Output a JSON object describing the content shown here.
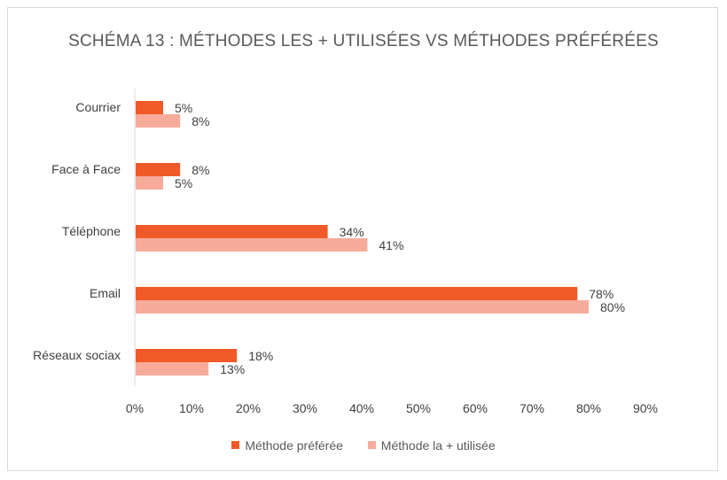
{
  "chart_data": {
    "type": "bar",
    "orientation": "horizontal",
    "title": "SCHÉMA 13 : MÉTHODES LES + UTILISÉES VS MÉTHODES PRÉFÉRÉES",
    "categories": [
      "Courrier",
      "Face à Face",
      "Téléphone",
      "Email",
      "Réseaux sociax"
    ],
    "series": [
      {
        "name": "Méthode préférée",
        "color": "#f05a28",
        "values": [
          5,
          8,
          34,
          78,
          18
        ]
      },
      {
        "name": "Méthode la + utilisée",
        "color": "#f7ab9a",
        "values": [
          8,
          5,
          41,
          80,
          13
        ]
      }
    ],
    "xlim": [
      0,
      90
    ],
    "xticks": [
      0,
      10,
      20,
      30,
      40,
      50,
      60,
      70,
      80,
      90
    ],
    "tick_suffix": "%",
    "gridlines": false,
    "legend_position": "bottom"
  }
}
